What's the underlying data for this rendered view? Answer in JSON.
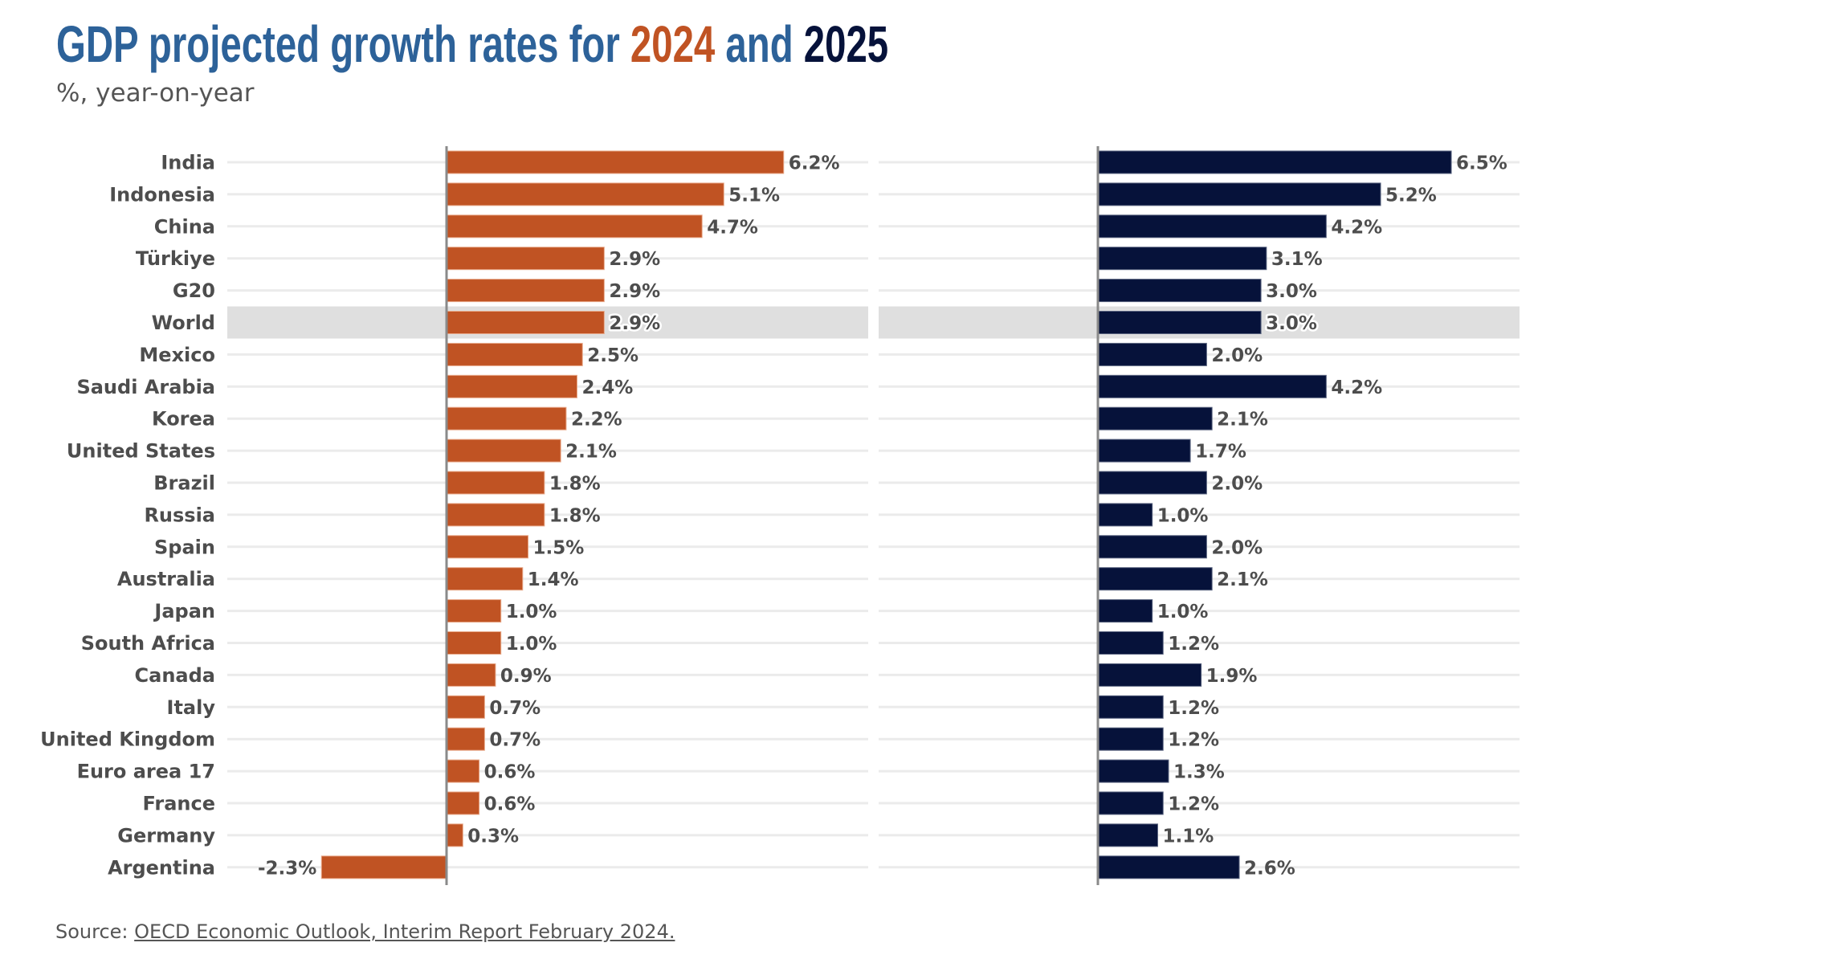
{
  "header": {
    "title_prefix": "GDP projected growth rates for ",
    "title_year1": "2024",
    "title_mid": " and ",
    "title_year2": "2025",
    "subtitle": "%, year-on-year"
  },
  "footer": {
    "source_label": "Source: ",
    "source_link": "OECD Economic Outlook, Interim Report February 2024."
  },
  "colors": {
    "title": "#2D6299",
    "series_2024": "#C05323",
    "series_2025": "#06123A",
    "highlight_band": "#DFDFDF",
    "gridline": "#EBEBEB",
    "axis": "#8A8A8A",
    "text": "#4D4D4D"
  },
  "chart_data": {
    "type": "bar",
    "orientation": "horizontal",
    "title": "GDP projected growth rates for 2024 and 2025",
    "subtitle": "%, year-on-year",
    "xlabel": "",
    "ylabel": "",
    "value_format": "{v}%",
    "highlight_category": "World",
    "grid": "horizontal row lines",
    "legend": "none (years colored in title)",
    "categories": [
      "India",
      "Indonesia",
      "China",
      "Türkiye",
      "G20",
      "World",
      "Mexico",
      "Saudi Arabia",
      "Korea",
      "United States",
      "Brazil",
      "Russia",
      "Spain",
      "Australia",
      "Japan",
      "South Africa",
      "Canada",
      "Italy",
      "United Kingdom",
      "Euro area 17",
      "France",
      "Germany",
      "Argentina"
    ],
    "series": [
      {
        "name": "2024",
        "values": [
          6.2,
          5.1,
          4.7,
          2.9,
          2.9,
          2.9,
          2.5,
          2.4,
          2.2,
          2.1,
          1.8,
          1.8,
          1.5,
          1.4,
          1.0,
          1.0,
          0.9,
          0.7,
          0.7,
          0.6,
          0.6,
          0.3,
          -2.3
        ],
        "xlim": [
          -4.0,
          7.8
        ]
      },
      {
        "name": "2025",
        "values": [
          6.5,
          5.2,
          4.2,
          3.1,
          3.0,
          3.0,
          2.0,
          4.2,
          2.1,
          1.7,
          2.0,
          1.0,
          2.0,
          2.1,
          1.0,
          1.2,
          1.9,
          1.2,
          1.2,
          1.3,
          1.2,
          1.1,
          2.6
        ],
        "xlim": [
          -4.0,
          7.8
        ]
      }
    ]
  }
}
